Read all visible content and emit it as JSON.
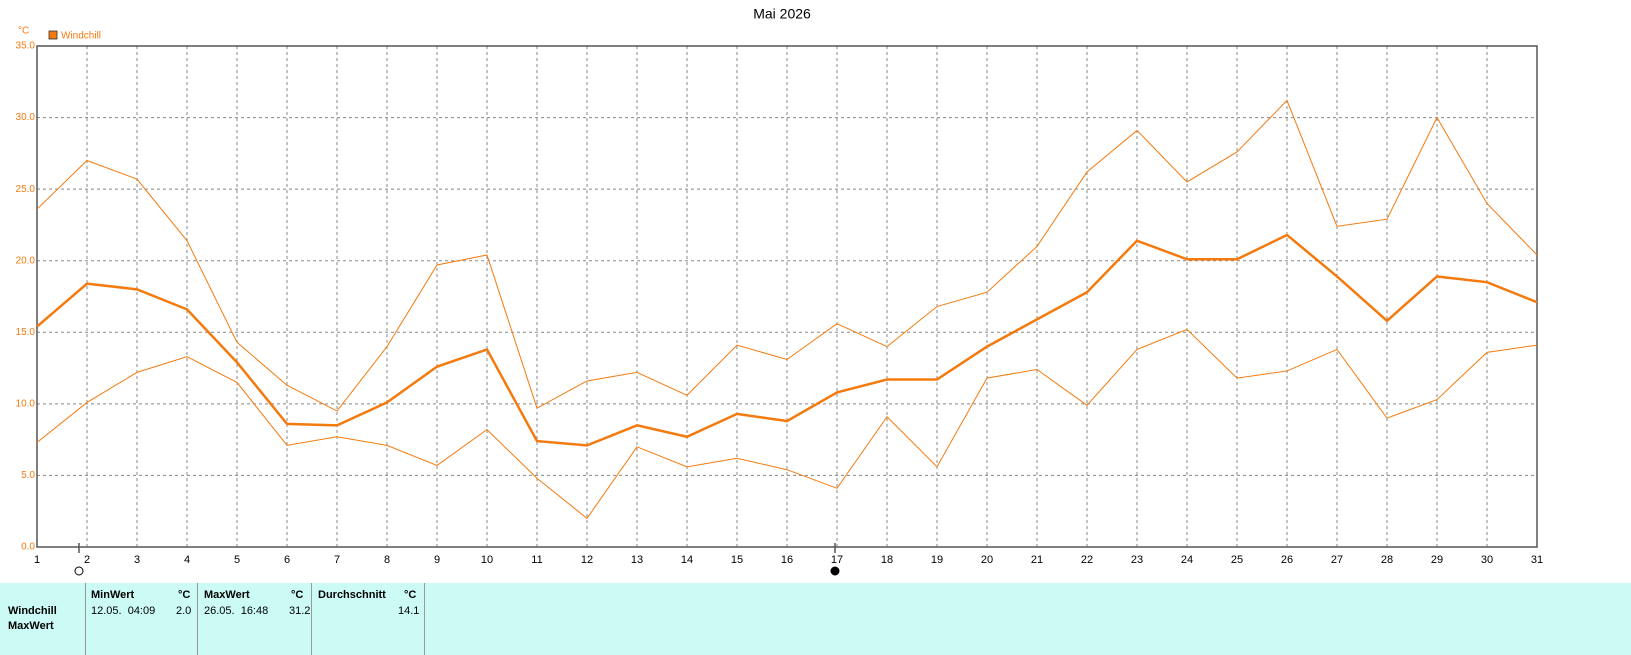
{
  "chart_data": {
    "type": "line",
    "title": "Mai 2026",
    "y_label": "°C",
    "x": [
      1,
      2,
      3,
      4,
      5,
      6,
      7,
      8,
      9,
      10,
      11,
      12,
      13,
      14,
      15,
      16,
      17,
      18,
      19,
      20,
      21,
      22,
      23,
      24,
      25,
      26,
      27,
      28,
      29,
      30,
      31
    ],
    "xlim": [
      1,
      31
    ],
    "xticks": [
      1,
      2,
      3,
      4,
      5,
      6,
      7,
      8,
      9,
      10,
      11,
      12,
      13,
      14,
      15,
      16,
      17,
      18,
      19,
      20,
      21,
      22,
      23,
      24,
      25,
      26,
      27,
      28,
      29,
      30,
      31
    ],
    "ylim": [
      0,
      35
    ],
    "yticks": [
      {
        "value": 0,
        "label": "0.0"
      },
      {
        "value": 5,
        "label": "5.0"
      },
      {
        "value": 10,
        "label": "10.0"
      },
      {
        "value": 15,
        "label": "15.0"
      },
      {
        "value": 20,
        "label": "20.0"
      },
      {
        "value": 25,
        "label": "25.0"
      },
      {
        "value": 30,
        "label": "30.0"
      },
      {
        "value": 35,
        "label": "35.0"
      }
    ],
    "grid": true,
    "legend": "top-left",
    "series": [
      {
        "name": "Windchill",
        "color": "#f47a0e",
        "values": [
          15.4,
          18.4,
          18.0,
          16.6,
          12.9,
          8.6,
          8.5,
          10.1,
          12.6,
          13.8,
          7.4,
          7.1,
          8.5,
          7.7,
          9.3,
          8.8,
          10.8,
          11.7,
          11.7,
          14.0,
          15.9,
          17.8,
          21.4,
          20.1,
          20.1,
          21.8,
          18.9,
          15.8,
          18.9,
          18.5,
          17.1
        ],
        "max_values": [
          23.6,
          27.0,
          25.7,
          21.4,
          14.3,
          11.3,
          9.5,
          14.0,
          19.7,
          20.4,
          9.7,
          11.6,
          12.2,
          10.6,
          14.1,
          13.1,
          15.6,
          14.0,
          16.8,
          17.8,
          21.0,
          26.2,
          29.1,
          25.5,
          27.6,
          31.2,
          22.4,
          22.9,
          30.0,
          24.0,
          20.4
        ],
        "min_values": [
          7.3,
          10.1,
          12.2,
          13.3,
          11.5,
          7.1,
          7.7,
          7.1,
          5.7,
          8.2,
          4.8,
          2.0,
          7.0,
          5.6,
          6.2,
          5.4,
          4.1,
          9.1,
          5.6,
          11.8,
          12.4,
          9.9,
          13.8,
          15.2,
          11.8,
          12.3,
          13.8,
          9.0,
          10.3,
          13.6,
          14.1
        ]
      }
    ]
  },
  "table": {
    "headers": [
      "MinWert",
      "°C",
      "MaxWert",
      "°C",
      "Durchschnitt",
      "°C"
    ],
    "rows": [
      [
        "Windchill",
        "12.05.  04:09",
        "2.0",
        "26.05.  16:48",
        "31.2",
        "14.1"
      ],
      [
        "MaxWert"
      ]
    ]
  }
}
